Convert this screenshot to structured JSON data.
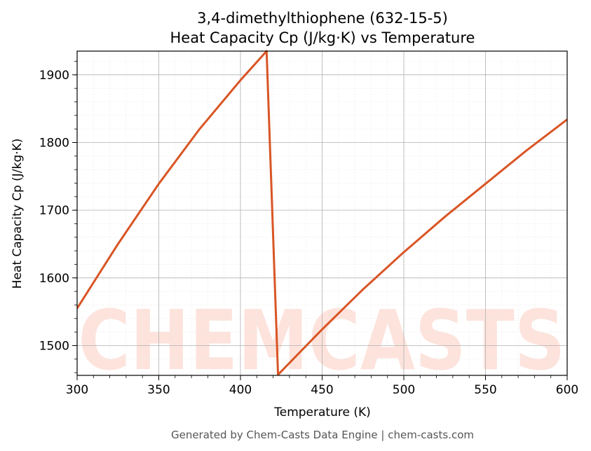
{
  "chart_data": {
    "type": "line",
    "title": "3,4-dimethylthiophene (632-15-5)",
    "subtitle": "Heat Capacity Cp (J/kg·K) vs Temperature",
    "x_label": "Temperature (K)",
    "y_label": "Heat Capacity Cp (J/kg·K)",
    "watermark": "CHEMCASTS",
    "footer": "Generated by Chem-Casts Data Engine | chem-casts.com",
    "x": [
      300,
      325,
      350,
      375,
      400,
      416,
      423,
      450,
      475,
      500,
      525,
      550,
      575,
      600
    ],
    "series": [
      {
        "name": "Cp",
        "color": "#d95525",
        "values": [
          1555,
          1650,
          1739,
          1820,
          1892,
          1935,
          1457,
          1524,
          1583,
          1638,
          1690,
          1739,
          1788,
          1834
        ]
      }
    ],
    "xlim": [
      300,
      600
    ],
    "xticks": [
      300,
      350,
      400,
      450,
      500,
      550,
      600
    ],
    "ylim": [
      1456,
      1935
    ],
    "yticks": [
      1500,
      1600,
      1700,
      1800,
      1900
    ],
    "grid": true,
    "minor_grid": true
  }
}
